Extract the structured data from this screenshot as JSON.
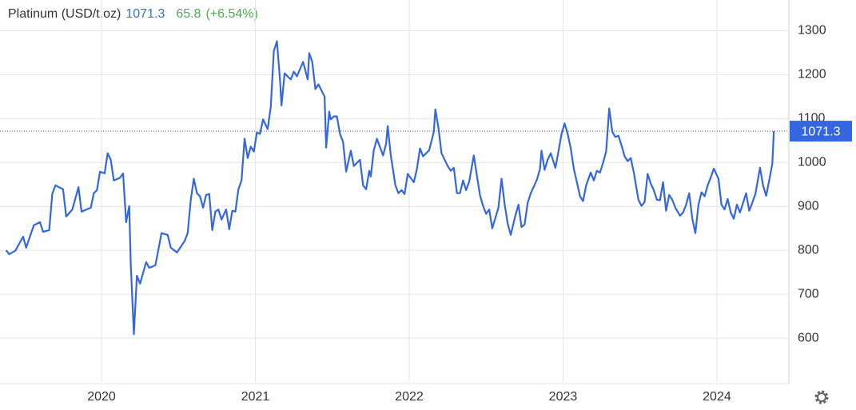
{
  "chart_data": {
    "type": "line",
    "title": "Platinum (USD/t.oz)",
    "change": 65.8,
    "change_percent_label": "(+6.54%)",
    "xlim": [
      2019.34,
      2024.46
    ],
    "xticks": [
      2020,
      2021,
      2022,
      2023,
      2024
    ],
    "ylim": [
      500,
      1370
    ],
    "yticks": [
      600,
      700,
      800,
      900,
      1000,
      1100,
      1200,
      1300
    ],
    "grid": true,
    "series": [
      {
        "name": "Platinum",
        "color": "#3366e0",
        "x": [
          2019.38,
          2019.4,
          2019.44,
          2019.49,
          2019.51,
          2019.56,
          2019.6,
          2019.62,
          2019.66,
          2019.68,
          2019.7,
          2019.75,
          2019.77,
          2019.81,
          2019.85,
          2019.87,
          2019.93,
          2019.95,
          2019.97,
          2019.99,
          2020.02,
          2020.04,
          2020.06,
          2020.08,
          2020.12,
          2020.14,
          2020.16,
          2020.18,
          2020.19,
          2020.21,
          2020.23,
          2020.25,
          2020.29,
          2020.31,
          2020.35,
          2020.39,
          2020.43,
          2020.45,
          2020.49,
          2020.54,
          2020.56,
          2020.58,
          2020.6,
          2020.62,
          2020.64,
          2020.66,
          2020.68,
          2020.7,
          2020.72,
          2020.74,
          2020.76,
          2020.78,
          2020.81,
          2020.83,
          2020.85,
          2020.87,
          2020.89,
          2020.91,
          2020.93,
          2020.95,
          2020.97,
          2020.99,
          2021.01,
          2021.03,
          2021.05,
          2021.08,
          2021.1,
          2021.12,
          2021.14,
          2021.16,
          2021.17,
          2021.19,
          2021.23,
          2021.25,
          2021.27,
          2021.31,
          2021.34,
          2021.35,
          2021.37,
          2021.39,
          2021.41,
          2021.45,
          2021.46,
          2021.48,
          2021.49,
          2021.51,
          2021.53,
          2021.55,
          2021.57,
          2021.59,
          2021.62,
          2021.64,
          2021.68,
          2021.7,
          2021.72,
          2021.74,
          2021.75,
          2021.77,
          2021.79,
          2021.83,
          2021.85,
          2021.86,
          2021.88,
          2021.91,
          2021.93,
          2021.95,
          2021.97,
          2021.99,
          2022.03,
          2022.05,
          2022.07,
          2022.09,
          2022.13,
          2022.16,
          2022.17,
          2022.19,
          2022.21,
          2022.25,
          2022.27,
          2022.29,
          2022.31,
          2022.33,
          2022.35,
          2022.37,
          2022.39,
          2022.42,
          2022.44,
          2022.46,
          2022.48,
          2022.5,
          2022.52,
          2022.54,
          2022.58,
          2022.6,
          2022.62,
          2022.64,
          2022.66,
          2022.69,
          2022.71,
          2022.73,
          2022.75,
          2022.77,
          2022.79,
          2022.83,
          2022.85,
          2022.86,
          2022.88,
          2022.9,
          2022.92,
          2022.95,
          2022.97,
          2022.99,
          2023.01,
          2023.03,
          2023.05,
          2023.07,
          2023.09,
          2023.11,
          2023.13,
          2023.15,
          2023.18,
          2023.2,
          2023.22,
          2023.24,
          2023.26,
          2023.28,
          2023.3,
          2023.32,
          2023.34,
          2023.36,
          2023.38,
          2023.4,
          2023.42,
          2023.44,
          2023.46,
          2023.49,
          2023.51,
          2023.53,
          2023.55,
          2023.57,
          2023.59,
          2023.61,
          2023.63,
          2023.65,
          2023.67,
          2023.69,
          2023.71,
          2023.73,
          2023.76,
          2023.78,
          2023.8,
          2023.82,
          2023.84,
          2023.86,
          2023.88,
          2023.9,
          2023.92,
          2023.94,
          2023.96,
          2023.98,
          2024.01,
          2024.03,
          2024.05,
          2024.07,
          2024.09,
          2024.11,
          2024.13,
          2024.15,
          2024.17,
          2024.19,
          2024.21,
          2024.23,
          2024.25,
          2024.28,
          2024.3,
          2024.32,
          2024.34,
          2024.36,
          2024.37
        ],
        "values": [
          800,
          791,
          799,
          831,
          806,
          857,
          864,
          842,
          846,
          928,
          948,
          939,
          877,
          893,
          944,
          888,
          897,
          930,
          937,
          979,
          975,
          1021,
          1006,
          959,
          965,
          975,
          864,
          901,
          769,
          609,
          742,
          724,
          773,
          760,
          766,
          839,
          835,
          806,
          795,
          821,
          839,
          915,
          963,
          930,
          923,
          897,
          926,
          928,
          846,
          888,
          893,
          870,
          893,
          848,
          890,
          888,
          939,
          959,
          1054,
          1010,
          1036,
          1025,
          1068,
          1065,
          1098,
          1076,
          1127,
          1254,
          1276,
          1189,
          1130,
          1203,
          1189,
          1207,
          1196,
          1229,
          1189,
          1249,
          1229,
          1167,
          1178,
          1150,
          1034,
          1116,
          1098,
          1105,
          1105,
          1065,
          1047,
          979,
          1027,
          992,
          1006,
          948,
          939,
          981,
          968,
          1028,
          1054,
          1016,
          1043,
          1083,
          1017,
          948,
          930,
          937,
          928,
          974,
          955,
          985,
          1032,
          1014,
          1028,
          1070,
          1121,
          1079,
          1021,
          992,
          981,
          988,
          930,
          930,
          959,
          937,
          957,
          1016,
          970,
          926,
          901,
          883,
          893,
          850,
          897,
          963,
          906,
          861,
          835,
          879,
          904,
          853,
          859,
          908,
          930,
          961,
          985,
          1027,
          983,
          1006,
          1021,
          988,
          1025,
          1065,
          1089,
          1065,
          1032,
          985,
          955,
          923,
          912,
          948,
          977,
          959,
          981,
          977,
          999,
          1025,
          1123,
          1070,
          1058,
          1061,
          1039,
          1014,
          1003,
          1010,
          977,
          915,
          901,
          910,
          974,
          952,
          937,
          915,
          914,
          955,
          890,
          926,
          915,
          897,
          879,
          886,
          904,
          930,
          872,
          839,
          904,
          932,
          923,
          948,
          966,
          986,
          963,
          904,
          893,
          917,
          886,
          872,
          904,
          886,
          908,
          930,
          890,
          908,
          928,
          988,
          948,
          924,
          959,
          997,
          1071.3
        ]
      }
    ]
  }
}
